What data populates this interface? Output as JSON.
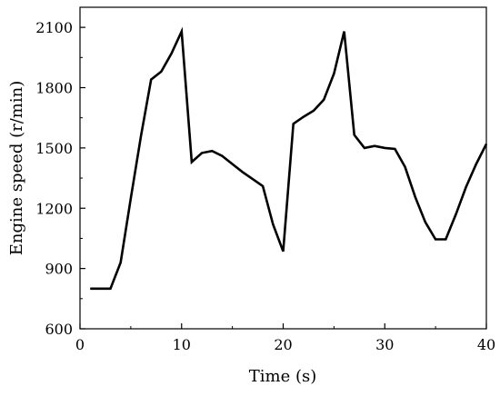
{
  "chart_data": {
    "type": "line",
    "title": "",
    "xlabel": "Time (s)",
    "ylabel": "Engine speed  (r/min)",
    "xlim": [
      0,
      40
    ],
    "ylim": [
      600,
      2200
    ],
    "xticks": [
      0,
      10,
      20,
      30,
      40
    ],
    "yticks": [
      600,
      900,
      1200,
      1500,
      1800,
      2100
    ],
    "grid": false,
    "series": [
      {
        "color": "#000000",
        "x": [
          1,
          2,
          3,
          4,
          5,
          6,
          7,
          8,
          9,
          10,
          11,
          12,
          13,
          14,
          15,
          16,
          17,
          18,
          19,
          20,
          21,
          22,
          23,
          24,
          25,
          26,
          27,
          28,
          29,
          30,
          31,
          32,
          33,
          34,
          35,
          36,
          37,
          38,
          39,
          40
        ],
        "values": [
          800,
          800,
          800,
          930,
          1250,
          1560,
          1840,
          1880,
          1970,
          2080,
          1430,
          1475,
          1485,
          1460,
          1420,
          1380,
          1345,
          1310,
          1120,
          985,
          1620,
          1655,
          1685,
          1740,
          1870,
          2080,
          1565,
          1500,
          1510,
          1500,
          1495,
          1405,
          1255,
          1130,
          1045,
          1045,
          1170,
          1305,
          1420,
          1520
        ]
      }
    ]
  }
}
